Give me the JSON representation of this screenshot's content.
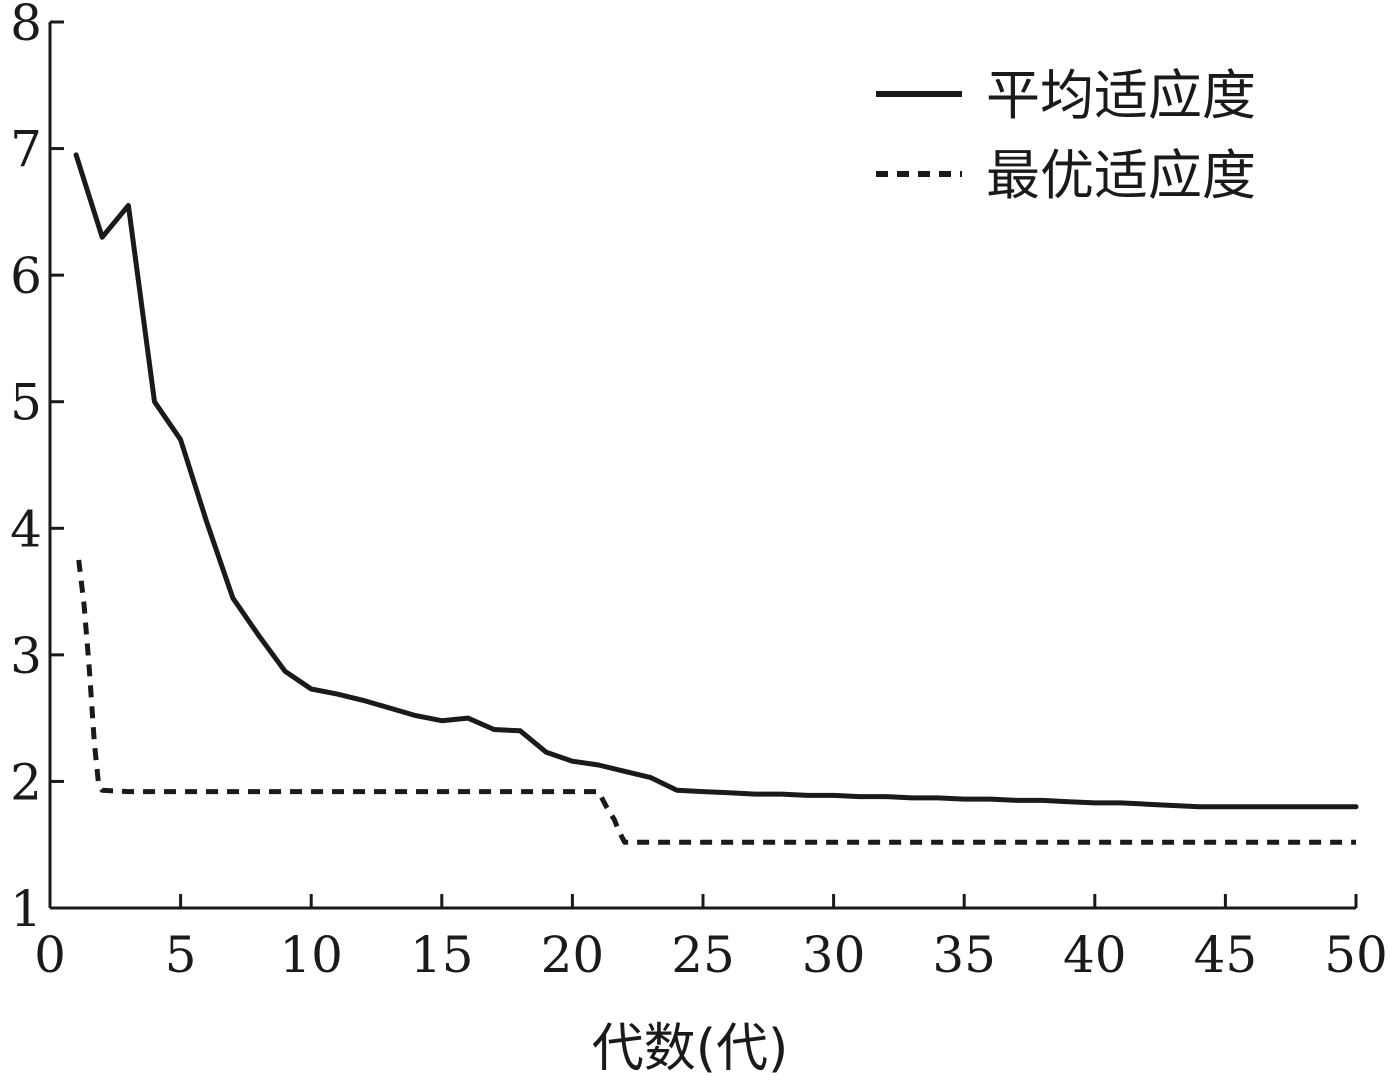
{
  "chart_data": {
    "type": "line",
    "title": "",
    "xlabel": "代数(代)",
    "ylabel": "",
    "xlim": [
      0,
      50
    ],
    "ylim": [
      1,
      8
    ],
    "xticks": [
      0,
      5,
      10,
      15,
      20,
      25,
      30,
      35,
      40,
      45,
      50
    ],
    "yticks": [
      1,
      2,
      3,
      4,
      5,
      6,
      7,
      8
    ],
    "grid": false,
    "legend_position": "top-right",
    "series": [
      {
        "name": "平均适应度",
        "style": "solid",
        "color": "#1a1a1a",
        "x": [
          1,
          2,
          3,
          4,
          5,
          6,
          7,
          8,
          9,
          10,
          11,
          12,
          13,
          14,
          15,
          16,
          17,
          18,
          19,
          20,
          21,
          22,
          23,
          24,
          25,
          26,
          27,
          28,
          29,
          30,
          31,
          32,
          33,
          34,
          35,
          36,
          37,
          38,
          39,
          40,
          41,
          42,
          43,
          44,
          45,
          46,
          47,
          48,
          49,
          50
        ],
        "y": [
          6.95,
          6.3,
          6.55,
          5.0,
          4.7,
          4.05,
          3.45,
          3.15,
          2.87,
          2.73,
          2.69,
          2.64,
          2.58,
          2.52,
          2.48,
          2.5,
          2.41,
          2.4,
          2.23,
          2.16,
          2.13,
          2.08,
          2.03,
          1.93,
          1.92,
          1.91,
          1.9,
          1.9,
          1.89,
          1.89,
          1.88,
          1.88,
          1.87,
          1.87,
          1.86,
          1.86,
          1.85,
          1.85,
          1.84,
          1.83,
          1.83,
          1.82,
          1.81,
          1.8,
          1.8,
          1.8,
          1.8,
          1.8,
          1.8,
          1.8
        ]
      },
      {
        "name": "最优适应度",
        "style": "dotted",
        "color": "#1a1a1a",
        "x": [
          1.1,
          1.3,
          1.5,
          1.7,
          1.85,
          2,
          3,
          5,
          10,
          15,
          20,
          21,
          21.3,
          21.6,
          21.8,
          22,
          25,
          30,
          35,
          40,
          45,
          50
        ],
        "y": [
          3.75,
          3.4,
          2.9,
          2.3,
          2.0,
          1.93,
          1.92,
          1.92,
          1.92,
          1.92,
          1.92,
          1.92,
          1.8,
          1.7,
          1.6,
          1.52,
          1.52,
          1.52,
          1.52,
          1.52,
          1.52,
          1.52
        ]
      }
    ]
  }
}
